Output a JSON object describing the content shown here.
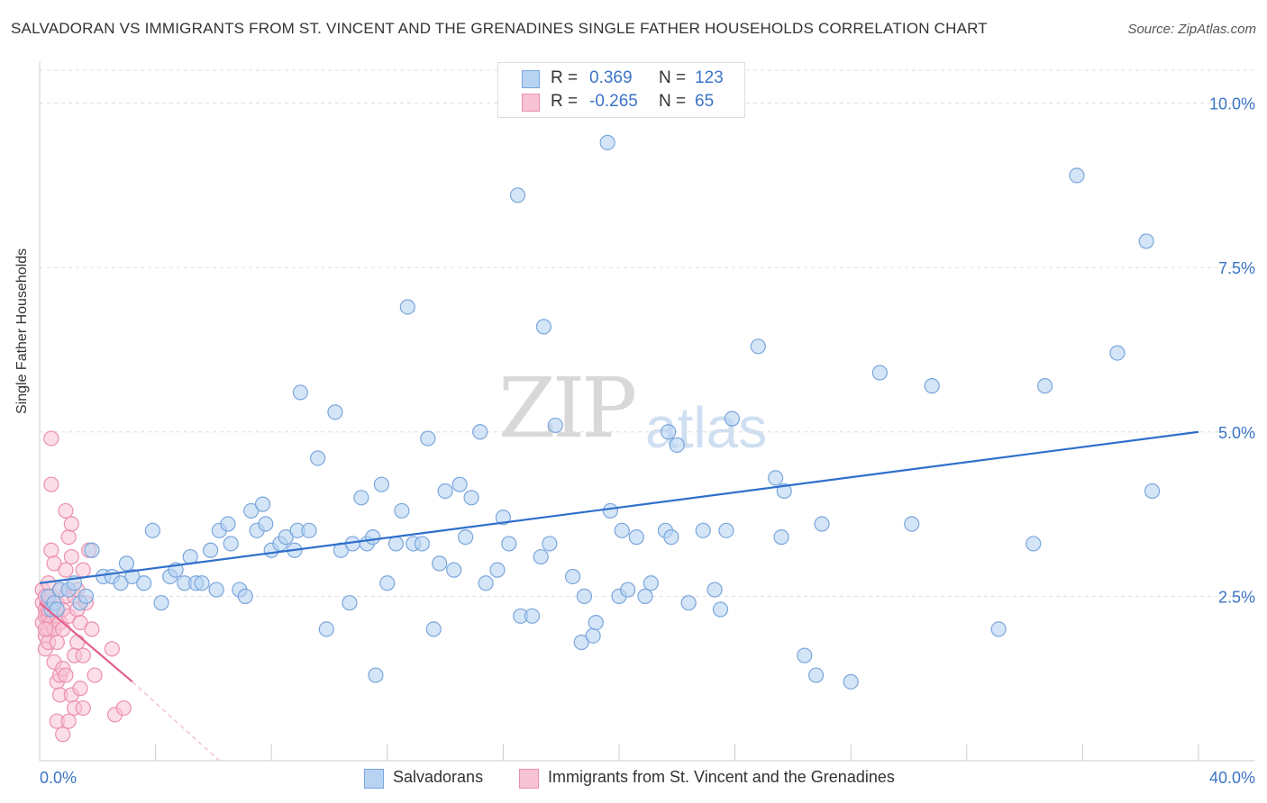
{
  "title": "SALVADORAN VS IMMIGRANTS FROM ST. VINCENT AND THE GRENADINES SINGLE FATHER HOUSEHOLDS CORRELATION CHART",
  "source": "Source: ZipAtlas.com",
  "watermark": {
    "zip": "ZIP",
    "atlas": "atlas"
  },
  "legend": {
    "rows": [
      {
        "r_label": "R =",
        "r_value": "0.369",
        "n_label": "N =",
        "n_value": "123"
      },
      {
        "r_label": "R =",
        "r_value": "-0.265",
        "n_label": "N =",
        "n_value": "65"
      }
    ]
  },
  "bottom_legend": {
    "series1": "Salvadorans",
    "series2": "Immigrants from St. Vincent and the Grenadines"
  },
  "colors": {
    "blue_fill": "#b8d3f2",
    "blue_stroke": "#7aa6dc",
    "blue_line": "#2f6fcc",
    "pink_fill": "#f7c3d4",
    "pink_stroke": "#ec8fae",
    "pink_line": "#e0608c",
    "axis_text": "#3b74c6"
  },
  "chart_data": {
    "type": "scatter",
    "title": "SALVADORAN VS IMMIGRANTS FROM ST. VINCENT AND THE GRENADINES SINGLE FATHER HOUSEHOLDS CORRELATION CHART",
    "xlabel": "",
    "ylabel": "Single Father Households",
    "xlim": [
      0,
      40
    ],
    "ylim": [
      0,
      10.5
    ],
    "x_tick_labels": [
      "0.0%",
      "40.0%"
    ],
    "y_ticks": [
      2.5,
      5.0,
      7.5,
      10.0
    ],
    "y_tick_labels": [
      "2.5%",
      "5.0%",
      "7.5%",
      "10.0%"
    ],
    "grid": true,
    "series": [
      {
        "name": "Salvadorans",
        "trend": {
          "x": [
            0,
            40
          ],
          "y": [
            2.7,
            5.0
          ]
        },
        "points": [
          [
            0.3,
            2.5
          ],
          [
            0.4,
            2.3
          ],
          [
            0.5,
            2.4
          ],
          [
            0.6,
            2.3
          ],
          [
            0.7,
            2.6
          ],
          [
            1.0,
            2.6
          ],
          [
            1.2,
            2.7
          ],
          [
            1.4,
            2.4
          ],
          [
            1.6,
            2.5
          ],
          [
            1.8,
            3.2
          ],
          [
            2.2,
            2.8
          ],
          [
            2.5,
            2.8
          ],
          [
            2.8,
            2.7
          ],
          [
            3.0,
            3.0
          ],
          [
            3.2,
            2.8
          ],
          [
            3.6,
            2.7
          ],
          [
            3.9,
            3.5
          ],
          [
            4.2,
            2.4
          ],
          [
            4.5,
            2.8
          ],
          [
            4.7,
            2.9
          ],
          [
            5.0,
            2.7
          ],
          [
            5.2,
            3.1
          ],
          [
            5.4,
            2.7
          ],
          [
            5.6,
            2.7
          ],
          [
            5.9,
            3.2
          ],
          [
            6.1,
            2.6
          ],
          [
            6.2,
            3.5
          ],
          [
            6.5,
            3.6
          ],
          [
            6.6,
            3.3
          ],
          [
            6.9,
            2.6
          ],
          [
            7.1,
            2.5
          ],
          [
            7.3,
            3.8
          ],
          [
            7.5,
            3.5
          ],
          [
            7.7,
            3.9
          ],
          [
            7.8,
            3.6
          ],
          [
            8.0,
            3.2
          ],
          [
            8.3,
            3.3
          ],
          [
            8.5,
            3.4
          ],
          [
            8.8,
            3.2
          ],
          [
            8.9,
            3.5
          ],
          [
            9.0,
            5.6
          ],
          [
            9.3,
            3.5
          ],
          [
            9.6,
            4.6
          ],
          [
            9.9,
            2.0
          ],
          [
            10.2,
            5.3
          ],
          [
            10.4,
            3.2
          ],
          [
            10.7,
            2.4
          ],
          [
            10.8,
            3.3
          ],
          [
            11.1,
            4.0
          ],
          [
            11.3,
            3.3
          ],
          [
            11.5,
            3.4
          ],
          [
            11.6,
            1.3
          ],
          [
            11.8,
            4.2
          ],
          [
            12.0,
            2.7
          ],
          [
            12.3,
            3.3
          ],
          [
            12.5,
            3.8
          ],
          [
            12.7,
            6.9
          ],
          [
            12.9,
            3.3
          ],
          [
            13.2,
            3.3
          ],
          [
            13.4,
            4.9
          ],
          [
            13.6,
            2.0
          ],
          [
            13.8,
            3.0
          ],
          [
            14.0,
            4.1
          ],
          [
            14.3,
            2.9
          ],
          [
            14.5,
            4.2
          ],
          [
            14.7,
            3.4
          ],
          [
            14.9,
            4.0
          ],
          [
            15.2,
            5.0
          ],
          [
            15.4,
            2.7
          ],
          [
            15.8,
            2.9
          ],
          [
            16.0,
            3.7
          ],
          [
            16.2,
            3.3
          ],
          [
            16.5,
            8.6
          ],
          [
            16.6,
            2.2
          ],
          [
            17.0,
            2.2
          ],
          [
            17.3,
            3.1
          ],
          [
            17.4,
            6.6
          ],
          [
            17.6,
            3.3
          ],
          [
            17.8,
            5.1
          ],
          [
            18.4,
            2.8
          ],
          [
            18.7,
            1.8
          ],
          [
            18.8,
            2.5
          ],
          [
            19.1,
            1.9
          ],
          [
            19.2,
            2.1
          ],
          [
            19.6,
            9.4
          ],
          [
            19.7,
            3.8
          ],
          [
            20.0,
            2.5
          ],
          [
            20.1,
            3.5
          ],
          [
            20.3,
            2.6
          ],
          [
            20.6,
            3.4
          ],
          [
            20.9,
            2.5
          ],
          [
            21.1,
            2.7
          ],
          [
            21.6,
            3.5
          ],
          [
            21.7,
            5.0
          ],
          [
            21.8,
            3.4
          ],
          [
            22.0,
            4.8
          ],
          [
            22.4,
            2.4
          ],
          [
            22.9,
            3.5
          ],
          [
            23.3,
            2.6
          ],
          [
            23.5,
            2.3
          ],
          [
            23.7,
            3.5
          ],
          [
            23.9,
            5.2
          ],
          [
            24.8,
            6.3
          ],
          [
            25.4,
            4.3
          ],
          [
            25.6,
            3.4
          ],
          [
            25.7,
            4.1
          ],
          [
            26.4,
            1.6
          ],
          [
            26.8,
            1.3
          ],
          [
            27.0,
            3.6
          ],
          [
            28.0,
            1.2
          ],
          [
            29.0,
            5.9
          ],
          [
            30.1,
            3.6
          ],
          [
            30.8,
            5.7
          ],
          [
            33.1,
            2.0
          ],
          [
            34.3,
            3.3
          ],
          [
            34.7,
            5.7
          ],
          [
            35.8,
            8.9
          ],
          [
            37.2,
            6.2
          ],
          [
            38.2,
            7.9
          ],
          [
            38.4,
            4.1
          ]
        ]
      },
      {
        "name": "Immigrants from St. Vincent and the Grenadines",
        "trend": {
          "x": [
            0,
            3.2
          ],
          "y": [
            2.4,
            1.2
          ]
        },
        "trend_dashed_extension": {
          "x": [
            3.2,
            6.2
          ],
          "y": [
            1.2,
            0.0
          ]
        },
        "points": [
          [
            0.1,
            2.6
          ],
          [
            0.1,
            2.4
          ],
          [
            0.1,
            2.1
          ],
          [
            0.2,
            2.3
          ],
          [
            0.2,
            1.9
          ],
          [
            0.2,
            2.2
          ],
          [
            0.2,
            1.7
          ],
          [
            0.2,
            2.5
          ],
          [
            0.3,
            2.2
          ],
          [
            0.3,
            2.0
          ],
          [
            0.3,
            2.4
          ],
          [
            0.3,
            1.8
          ],
          [
            0.3,
            2.3
          ],
          [
            0.3,
            2.7
          ],
          [
            0.4,
            2.1
          ],
          [
            0.4,
            4.9
          ],
          [
            0.4,
            4.2
          ],
          [
            0.4,
            3.2
          ],
          [
            0.4,
            2.5
          ],
          [
            0.5,
            1.5
          ],
          [
            0.5,
            2.0
          ],
          [
            0.5,
            2.3
          ],
          [
            0.5,
            3.0
          ],
          [
            0.6,
            2.2
          ],
          [
            0.6,
            1.8
          ],
          [
            0.6,
            1.2
          ],
          [
            0.6,
            0.6
          ],
          [
            0.6,
            2.4
          ],
          [
            0.7,
            2.1
          ],
          [
            0.7,
            2.6
          ],
          [
            0.7,
            1.0
          ],
          [
            0.7,
            1.3
          ],
          [
            0.8,
            2.0
          ],
          [
            0.8,
            2.3
          ],
          [
            0.8,
            1.4
          ],
          [
            0.8,
            0.4
          ],
          [
            0.9,
            2.5
          ],
          [
            0.9,
            1.3
          ],
          [
            0.9,
            3.8
          ],
          [
            0.9,
            2.9
          ],
          [
            1.0,
            3.4
          ],
          [
            1.0,
            2.2
          ],
          [
            1.0,
            0.6
          ],
          [
            1.1,
            3.6
          ],
          [
            1.1,
            1.0
          ],
          [
            1.1,
            3.1
          ],
          [
            1.2,
            2.5
          ],
          [
            1.2,
            1.6
          ],
          [
            1.2,
            0.8
          ],
          [
            1.3,
            2.3
          ],
          [
            1.3,
            2.6
          ],
          [
            1.3,
            1.8
          ],
          [
            1.4,
            1.1
          ],
          [
            1.4,
            2.1
          ],
          [
            1.5,
            1.6
          ],
          [
            1.5,
            2.9
          ],
          [
            1.5,
            0.8
          ],
          [
            1.6,
            2.4
          ],
          [
            1.7,
            3.2
          ],
          [
            1.8,
            2.0
          ],
          [
            2.5,
            1.7
          ],
          [
            2.6,
            0.7
          ],
          [
            2.9,
            0.8
          ],
          [
            1.9,
            1.3
          ],
          [
            0.2,
            2.0
          ]
        ]
      }
    ]
  }
}
